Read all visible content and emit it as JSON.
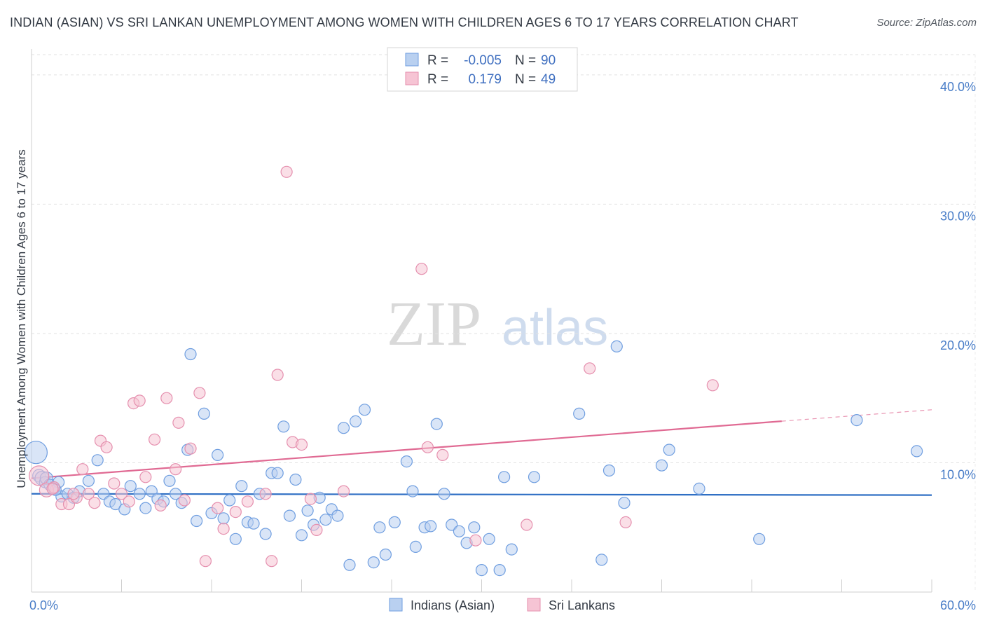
{
  "chart_data": {
    "type": "scatter",
    "title": "INDIAN (ASIAN) VS SRI LANKAN UNEMPLOYMENT AMONG WOMEN WITH CHILDREN AGES 6 TO 17 YEARS CORRELATION CHART",
    "source": "Source: ZipAtlas.com",
    "ylabel": "Unemployment Among Women with Children Ages 6 to 17 years",
    "xlabel": "",
    "xlim": [
      0,
      60
    ],
    "ylim": [
      0,
      42
    ],
    "x_tick_labels": {
      "min": "0.0%",
      "max": "60.0%"
    },
    "y_ticks": [
      {
        "value": 10,
        "label": "10.0%"
      },
      {
        "value": 20,
        "label": "20.0%"
      },
      {
        "value": 30,
        "label": "30.0%"
      },
      {
        "value": 40,
        "label": "40.0%"
      }
    ],
    "watermark": {
      "zip": "ZIP",
      "atlas": "atlas"
    },
    "legend": {
      "r_label": "R =",
      "n_label": "N =",
      "entries": [
        {
          "r": "-0.005",
          "n": "90"
        },
        {
          "r": "0.179",
          "n": "49"
        }
      ]
    },
    "series": [
      {
        "name": "Indians (Asian)",
        "color": "#6f9ee0",
        "fill": "#b9d0f0",
        "trend": {
          "x0": 0,
          "y0": 7.6,
          "x1": 60,
          "y1": 7.5,
          "solid_to": 60
        },
        "points": [
          [
            0.3,
            10.8,
            16
          ],
          [
            0.5,
            9,
            9
          ],
          [
            0.7,
            8.8,
            10
          ],
          [
            0.9,
            8.5,
            8
          ],
          [
            1,
            8.8,
            9
          ],
          [
            1.2,
            8.3,
            8
          ],
          [
            1.5,
            8,
            8
          ],
          [
            1.8,
            8.5,
            8
          ],
          [
            2,
            7.4,
            8
          ],
          [
            2.4,
            7.6,
            8
          ],
          [
            2.8,
            7.3,
            8
          ],
          [
            3.2,
            7.8,
            8
          ],
          [
            3.8,
            8.6,
            8
          ],
          [
            4.4,
            10.2,
            8
          ],
          [
            4.8,
            7.6,
            8
          ],
          [
            5.2,
            7,
            8
          ],
          [
            5.6,
            6.8,
            8
          ],
          [
            6.2,
            6.4,
            8
          ],
          [
            6.6,
            8.2,
            8
          ],
          [
            7.2,
            7.6,
            8
          ],
          [
            7.6,
            6.5,
            8
          ],
          [
            8,
            7.8,
            8
          ],
          [
            8.4,
            7.2,
            8
          ],
          [
            8.8,
            7,
            8
          ],
          [
            9.2,
            8.6,
            8
          ],
          [
            9.6,
            7.6,
            8
          ],
          [
            10,
            6.9,
            8
          ],
          [
            10.4,
            11,
            8
          ],
          [
            10.6,
            18.4,
            8
          ],
          [
            11,
            5.5,
            8
          ],
          [
            11.5,
            13.8,
            8
          ],
          [
            12,
            6.1,
            8
          ],
          [
            12.4,
            10.6,
            8
          ],
          [
            12.8,
            5.7,
            8
          ],
          [
            13.2,
            7.1,
            8
          ],
          [
            13.6,
            4.1,
            8
          ],
          [
            14,
            8.2,
            8
          ],
          [
            14.4,
            5.4,
            8
          ],
          [
            14.8,
            5.3,
            8
          ],
          [
            15.2,
            7.6,
            8
          ],
          [
            15.6,
            4.5,
            8
          ],
          [
            16,
            9.2,
            8
          ],
          [
            16.4,
            9.2,
            8
          ],
          [
            16.8,
            12.8,
            8
          ],
          [
            17.2,
            5.9,
            8
          ],
          [
            17.6,
            8.7,
            8
          ],
          [
            18,
            4.4,
            8
          ],
          [
            18.4,
            6.3,
            8
          ],
          [
            18.8,
            5.2,
            8
          ],
          [
            19.2,
            7.3,
            8
          ],
          [
            19.6,
            5.6,
            8
          ],
          [
            20,
            6.4,
            8
          ],
          [
            20.4,
            5.9,
            8
          ],
          [
            20.8,
            12.7,
            8
          ],
          [
            21.2,
            2.1,
            8
          ],
          [
            21.6,
            13.2,
            8
          ],
          [
            22.2,
            14.1,
            8
          ],
          [
            22.8,
            2.3,
            8
          ],
          [
            23.2,
            5,
            8
          ],
          [
            23.6,
            2.9,
            8
          ],
          [
            24.2,
            5.4,
            8
          ],
          [
            25,
            10.1,
            8
          ],
          [
            25.4,
            7.8,
            8
          ],
          [
            25.6,
            3.5,
            8
          ],
          [
            26.2,
            5,
            8
          ],
          [
            26.6,
            5.1,
            8
          ],
          [
            27,
            13,
            8
          ],
          [
            27.5,
            7.6,
            8
          ],
          [
            28,
            5.2,
            8
          ],
          [
            28.5,
            4.7,
            8
          ],
          [
            29,
            3.8,
            8
          ],
          [
            29.5,
            5,
            8
          ],
          [
            30,
            1.7,
            8
          ],
          [
            30.5,
            4.1,
            8
          ],
          [
            31.2,
            1.7,
            8
          ],
          [
            31.5,
            8.9,
            8
          ],
          [
            32,
            3.3,
            8
          ],
          [
            33.5,
            8.9,
            8
          ],
          [
            36.5,
            13.8,
            8
          ],
          [
            38,
            2.5,
            8
          ],
          [
            38.5,
            9.4,
            8
          ],
          [
            39,
            19,
            8
          ],
          [
            39.5,
            6.9,
            8
          ],
          [
            42,
            9.8,
            8
          ],
          [
            42.5,
            11,
            8
          ],
          [
            44.5,
            8,
            8
          ],
          [
            48.5,
            4.1,
            8
          ],
          [
            55,
            13.3,
            8
          ],
          [
            59,
            10.9,
            8
          ],
          [
            1.6,
            7.9,
            8
          ]
        ]
      },
      {
        "name": "Sri Lankans",
        "color": "#e58fae",
        "fill": "#f6c4d4",
        "trend": {
          "x0": 0,
          "y0": 8.8,
          "x1": 60,
          "y1": 14.1,
          "solid_to": 50
        },
        "points": [
          [
            0.5,
            9,
            14
          ],
          [
            1,
            7.9,
            10
          ],
          [
            1.5,
            8.1,
            8
          ],
          [
            2,
            6.8,
            8
          ],
          [
            2.5,
            6.8,
            8
          ],
          [
            3,
            7.3,
            8
          ],
          [
            3.4,
            9.5,
            8
          ],
          [
            3.8,
            7.6,
            8
          ],
          [
            4.2,
            6.9,
            8
          ],
          [
            4.6,
            11.7,
            8
          ],
          [
            5,
            11.2,
            8
          ],
          [
            5.5,
            8.4,
            8
          ],
          [
            6,
            7.6,
            8
          ],
          [
            6.5,
            7,
            8
          ],
          [
            6.8,
            14.6,
            8
          ],
          [
            7.2,
            14.8,
            8
          ],
          [
            7.6,
            8.9,
            8
          ],
          [
            8.2,
            11.8,
            8
          ],
          [
            8.6,
            6.7,
            8
          ],
          [
            9,
            15,
            8
          ],
          [
            9.6,
            9.5,
            8
          ],
          [
            9.8,
            13.1,
            8
          ],
          [
            10.2,
            7.1,
            8
          ],
          [
            10.6,
            11.1,
            8
          ],
          [
            11.2,
            15.4,
            8
          ],
          [
            11.6,
            2.4,
            8
          ],
          [
            12.4,
            6.5,
            8
          ],
          [
            12.8,
            4.9,
            8
          ],
          [
            13.6,
            6.2,
            8
          ],
          [
            14.4,
            7,
            8
          ],
          [
            15.6,
            7.6,
            8
          ],
          [
            16,
            2.4,
            8
          ],
          [
            16.4,
            16.8,
            8
          ],
          [
            17,
            32.5,
            8
          ],
          [
            17.4,
            11.6,
            8
          ],
          [
            18,
            11.4,
            8
          ],
          [
            18.6,
            7.2,
            8
          ],
          [
            19,
            4.8,
            8
          ],
          [
            20.8,
            7.8,
            8
          ],
          [
            26,
            25,
            8
          ],
          [
            26.4,
            11.2,
            8
          ],
          [
            27.4,
            10.6,
            8
          ],
          [
            29.6,
            4,
            8
          ],
          [
            33,
            5.2,
            8
          ],
          [
            37.2,
            17.3,
            8
          ],
          [
            39.6,
            5.4,
            8
          ],
          [
            45.4,
            16,
            8
          ],
          [
            2.8,
            7.6,
            8
          ],
          [
            1.4,
            8,
            8
          ]
        ]
      }
    ]
  }
}
